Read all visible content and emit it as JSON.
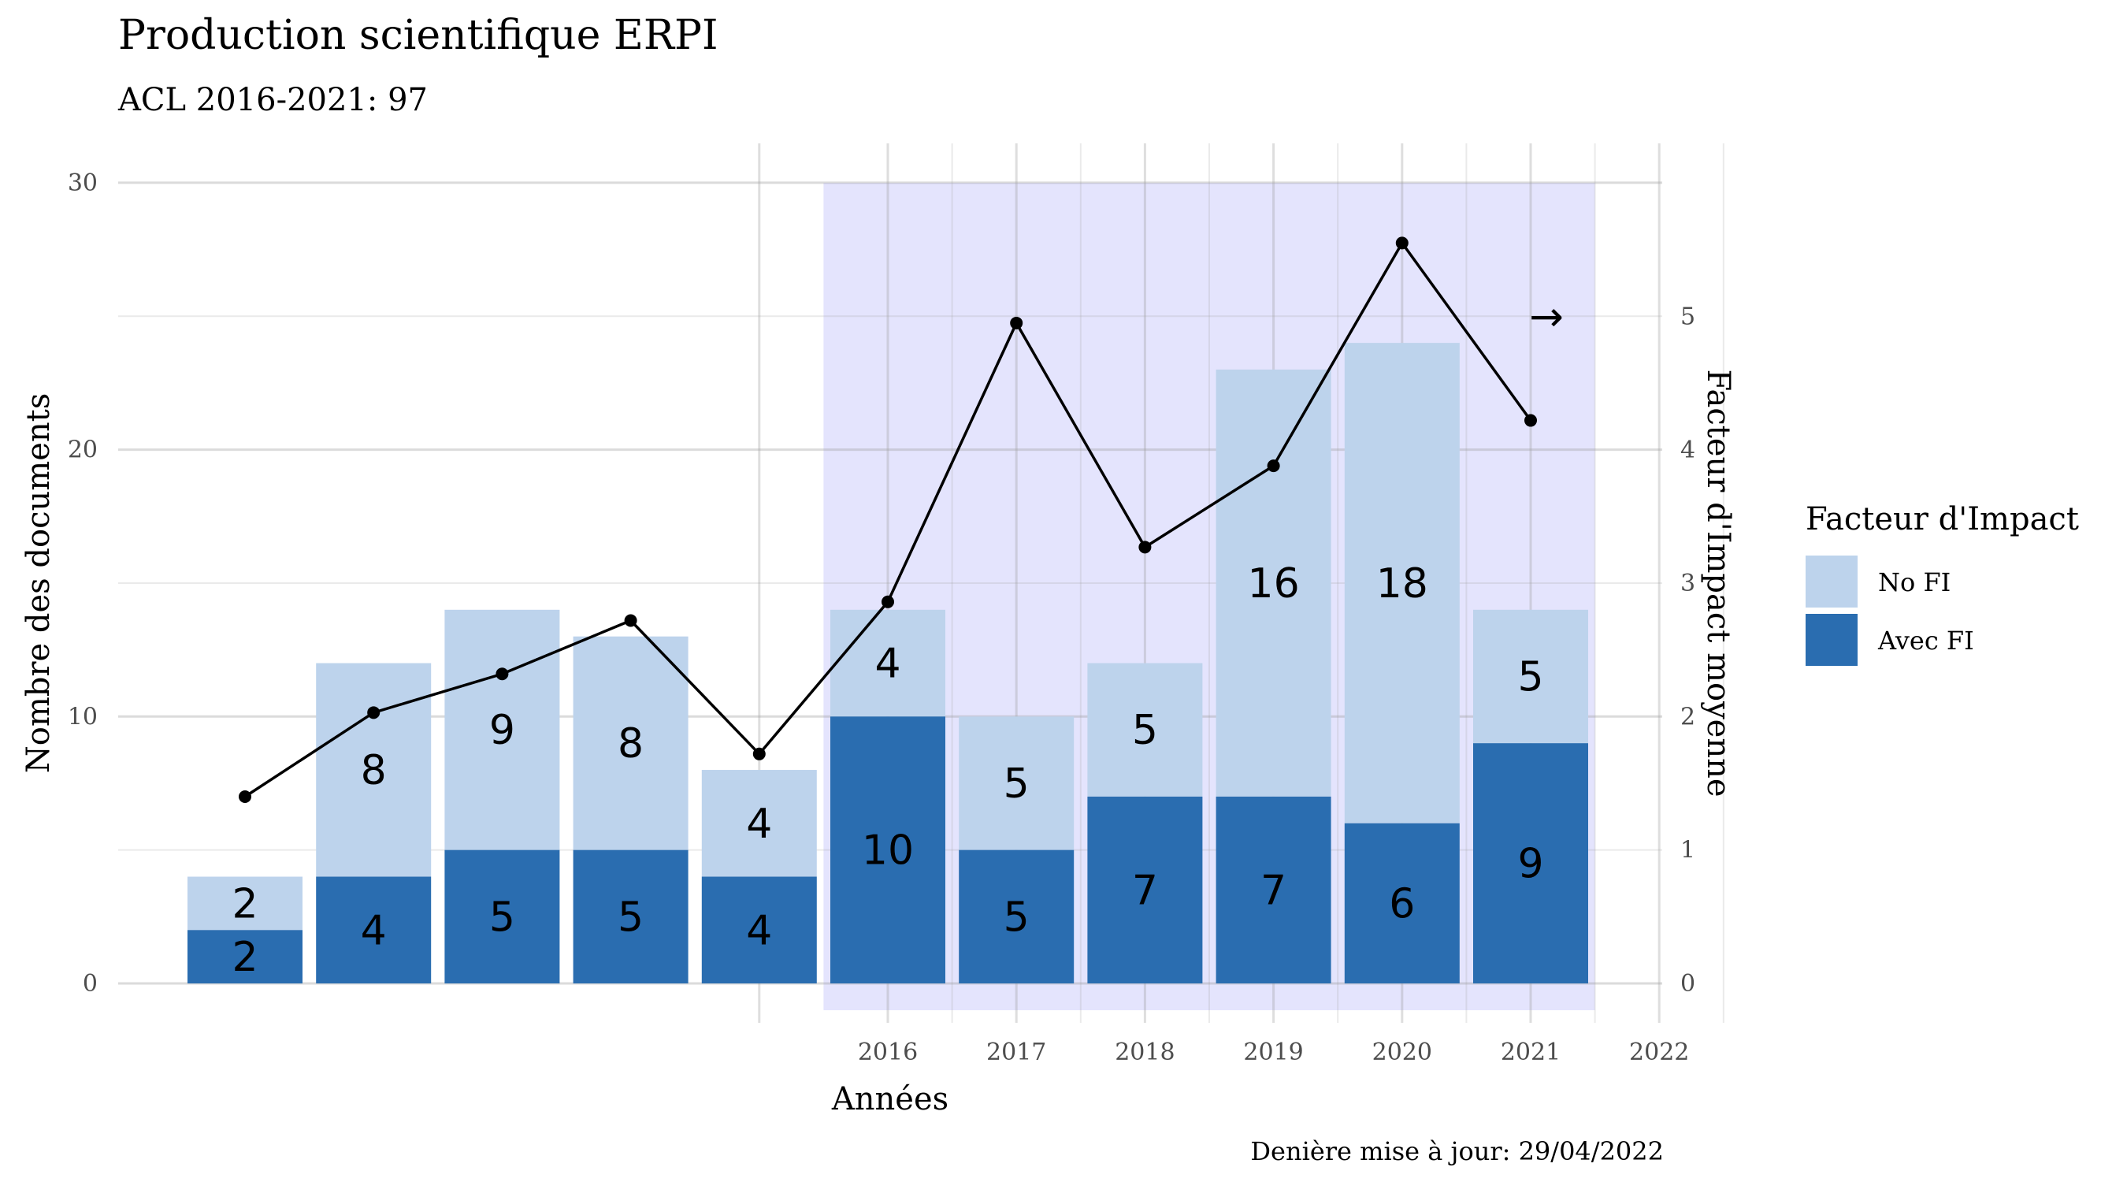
{
  "chart_data": {
    "type": "bar",
    "title": "Production scientifique ERPI",
    "subtitle": "ACL 2016-2021: 97",
    "xlabel": "Années",
    "ylabel": "Nombre des documents",
    "y2label": "Facteur d'Impact moyenne",
    "caption": "Denière mise à jour: 29/04/2022",
    "ylim": [
      0,
      30
    ],
    "y2lim": [
      0,
      6
    ],
    "yticks": [
      "0",
      "10",
      "20",
      "30"
    ],
    "y2ticks": [
      "0",
      "1",
      "2",
      "3",
      "4",
      "5"
    ],
    "xticks": [
      "2016",
      "2017",
      "2018",
      "2019",
      "2020",
      "2021",
      "2022"
    ],
    "stacked": true,
    "legend": {
      "title": "Facteur d'Impact",
      "position": "right",
      "entries": [
        {
          "label": "No FI",
          "color": "#bdd3ec"
        },
        {
          "label": "Avec FI",
          "color": "#2a6db0"
        }
      ]
    },
    "series": [
      {
        "name": "Avec FI",
        "color": "#2a6db0",
        "values": [
          2,
          4,
          5,
          5,
          4,
          10,
          5,
          7,
          7,
          6,
          9
        ]
      },
      {
        "name": "No FI",
        "color": "#bdd3ec",
        "values": [
          2,
          8,
          9,
          8,
          4,
          4,
          5,
          5,
          16,
          18,
          5
        ]
      }
    ],
    "line": {
      "color": "#000000",
      "values": [
        1.4,
        2.03,
        2.32,
        2.72,
        1.72,
        2.86,
        4.95,
        3.27,
        3.88,
        5.55,
        4.22
      ]
    },
    "highlight": {
      "from_bar": 5,
      "to_bar": 10,
      "color": "#e4e4fd"
    },
    "annotation": {
      "text": "→"
    }
  }
}
